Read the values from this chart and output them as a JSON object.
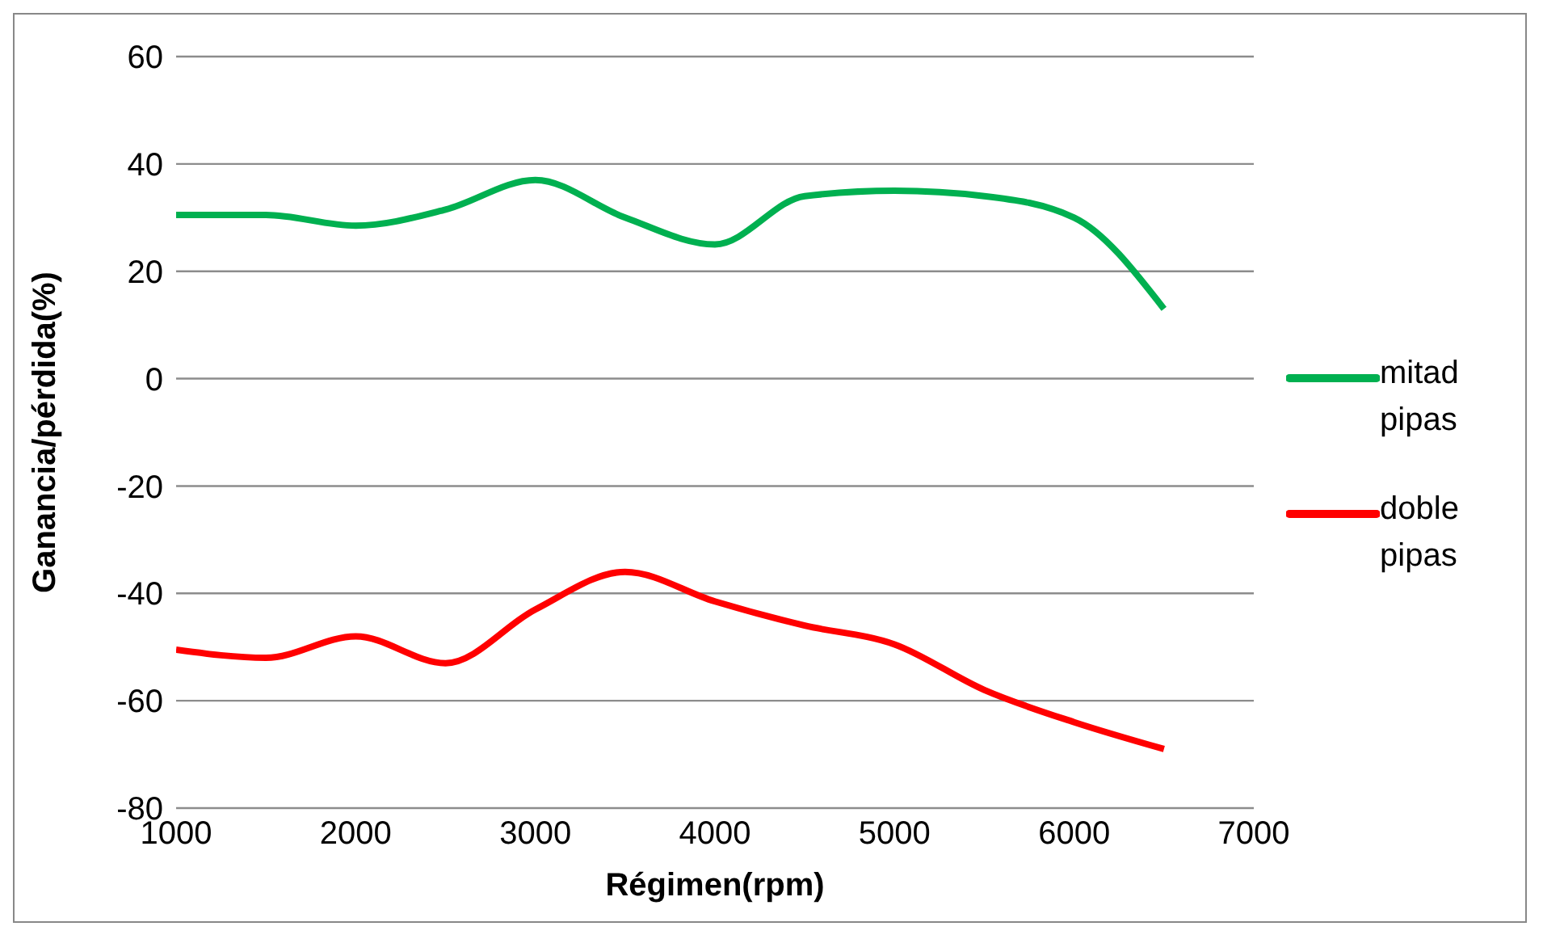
{
  "chart_data": {
    "type": "line",
    "xlabel": "Régimen(rpm)",
    "ylabel": "Ganancia/pérdida(%)",
    "x": [
      1000,
      1500,
      2000,
      2500,
      3000,
      3500,
      4000,
      4500,
      5000,
      5500,
      6000,
      6500
    ],
    "series": [
      {
        "name": "mitad pipas",
        "color": "#00b050",
        "values": [
          30.5,
          30.5,
          28.5,
          31.5,
          37,
          30,
          25,
          34,
          35,
          34,
          30,
          13
        ]
      },
      {
        "name": "doble pipas",
        "color": "#ff0000",
        "values": [
          -50.5,
          -52,
          -48,
          -53,
          -43,
          -36,
          -41.5,
          -46,
          -49.5,
          -58,
          -64,
          -69
        ]
      }
    ],
    "xlim": [
      1000,
      7000
    ],
    "xticks": [
      1000,
      2000,
      3000,
      4000,
      5000,
      6000,
      7000
    ],
    "ylim": [
      -80,
      60
    ],
    "yticks": [
      -80,
      -60,
      -40,
      -20,
      0,
      20,
      40,
      60
    ],
    "grid": "y",
    "legend": "right",
    "marker": "none",
    "line_style": "solid"
  }
}
